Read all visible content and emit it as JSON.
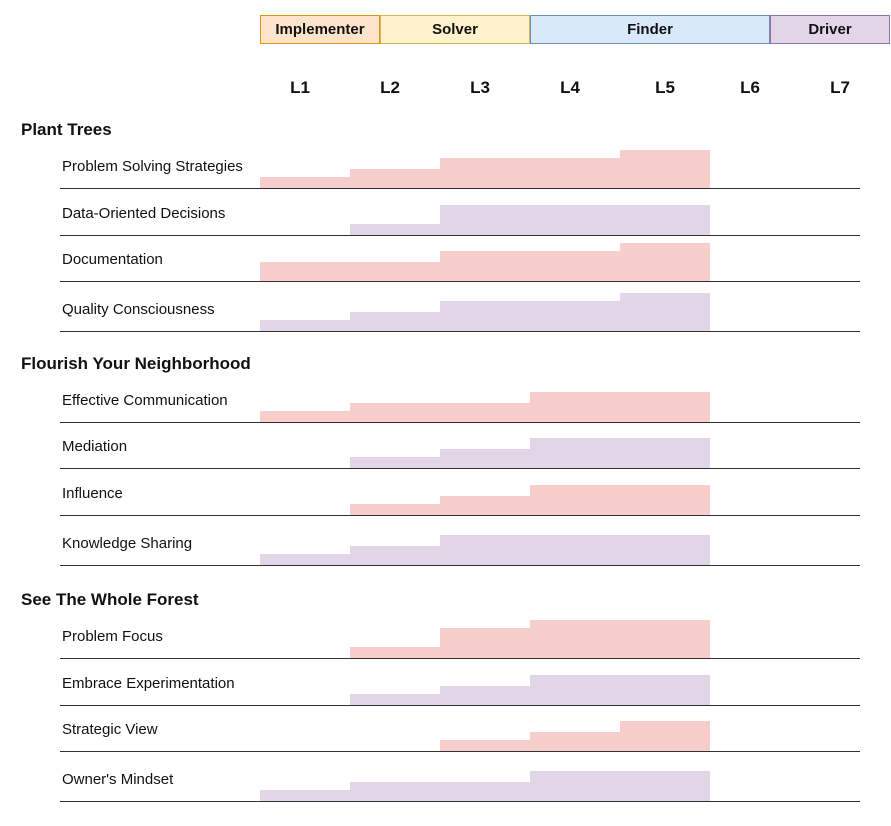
{
  "bands": [
    {
      "label": "Implementer",
      "fill": "#fce4cc",
      "stroke": "#d79b00"
    },
    {
      "label": "Solver",
      "fill": "#fff2cc",
      "stroke": "#d6b656"
    },
    {
      "label": "Finder",
      "fill": "#dae8fc",
      "stroke": "#6c8ebf"
    },
    {
      "label": "Driver",
      "fill": "#e1d5e7",
      "stroke": "#9673a6"
    }
  ],
  "levels": [
    "L1",
    "L2",
    "L3",
    "L4",
    "L5",
    "L6",
    "L7"
  ],
  "colors": {
    "red": "#f8cecc",
    "purple": "#e1d5e7"
  },
  "sections": [
    {
      "title": "Plant Trees",
      "rows": [
        {
          "label": "Problem Solving Strategies",
          "color": "red",
          "values": [
            1,
            2,
            3,
            3,
            4
          ]
        },
        {
          "label": "Data-Oriented Decisions",
          "color": "purple",
          "values": [
            0,
            1,
            3,
            3,
            3
          ]
        },
        {
          "label": "Documentation",
          "color": "red",
          "values": [
            2,
            2,
            3,
            3,
            4
          ]
        },
        {
          "label": "Quality Consciousness",
          "color": "purple",
          "values": [
            1,
            2,
            3,
            3,
            4
          ]
        }
      ]
    },
    {
      "title": "Flourish Your Neighborhood",
      "rows": [
        {
          "label": "Effective Communication",
          "color": "red",
          "values": [
            1,
            2,
            2,
            3,
            3
          ]
        },
        {
          "label": "Mediation",
          "color": "purple",
          "values": [
            0,
            1,
            2,
            3,
            3
          ]
        },
        {
          "label": "Influence",
          "color": "red",
          "values": [
            0,
            1,
            2,
            3,
            3
          ]
        },
        {
          "label": "Knowledge Sharing",
          "color": "purple",
          "values": [
            1,
            2,
            3,
            3,
            3
          ]
        }
      ]
    },
    {
      "title": "See The Whole Forest",
      "rows": [
        {
          "label": "Problem Focus",
          "color": "red",
          "values": [
            0,
            1,
            3,
            4,
            4
          ]
        },
        {
          "label": "Embrace Experimentation",
          "color": "purple",
          "values": [
            0,
            1,
            2,
            3,
            3
          ]
        },
        {
          "label": "Strategic View",
          "color": "red",
          "values": [
            0,
            0,
            1,
            2,
            3
          ]
        },
        {
          "label": "Owner's Mindset",
          "color": "purple",
          "values": [
            1,
            2,
            2,
            3,
            3
          ]
        }
      ]
    }
  ]
}
